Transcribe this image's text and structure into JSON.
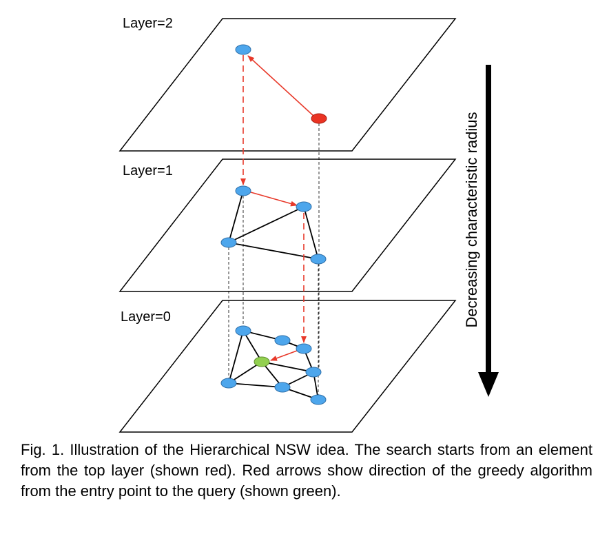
{
  "layers": [
    {
      "label": "Layer=2"
    },
    {
      "label": "Layer=1"
    },
    {
      "label": "Layer=0"
    }
  ],
  "axis": {
    "label": "Decreasing characteristic radius"
  },
  "caption": "Fig. 1. Illustration of the Hierarchical NSW idea. The search starts from an element from the top layer (shown red). Red arrows show direction of the greedy algorithm from the entry point to the query (shown green).",
  "colors": {
    "node": "#4da6ec",
    "entry_node": "#ea3323",
    "query_node": "#92d050",
    "arrow": "#e8392a",
    "edge": "#000000"
  }
}
